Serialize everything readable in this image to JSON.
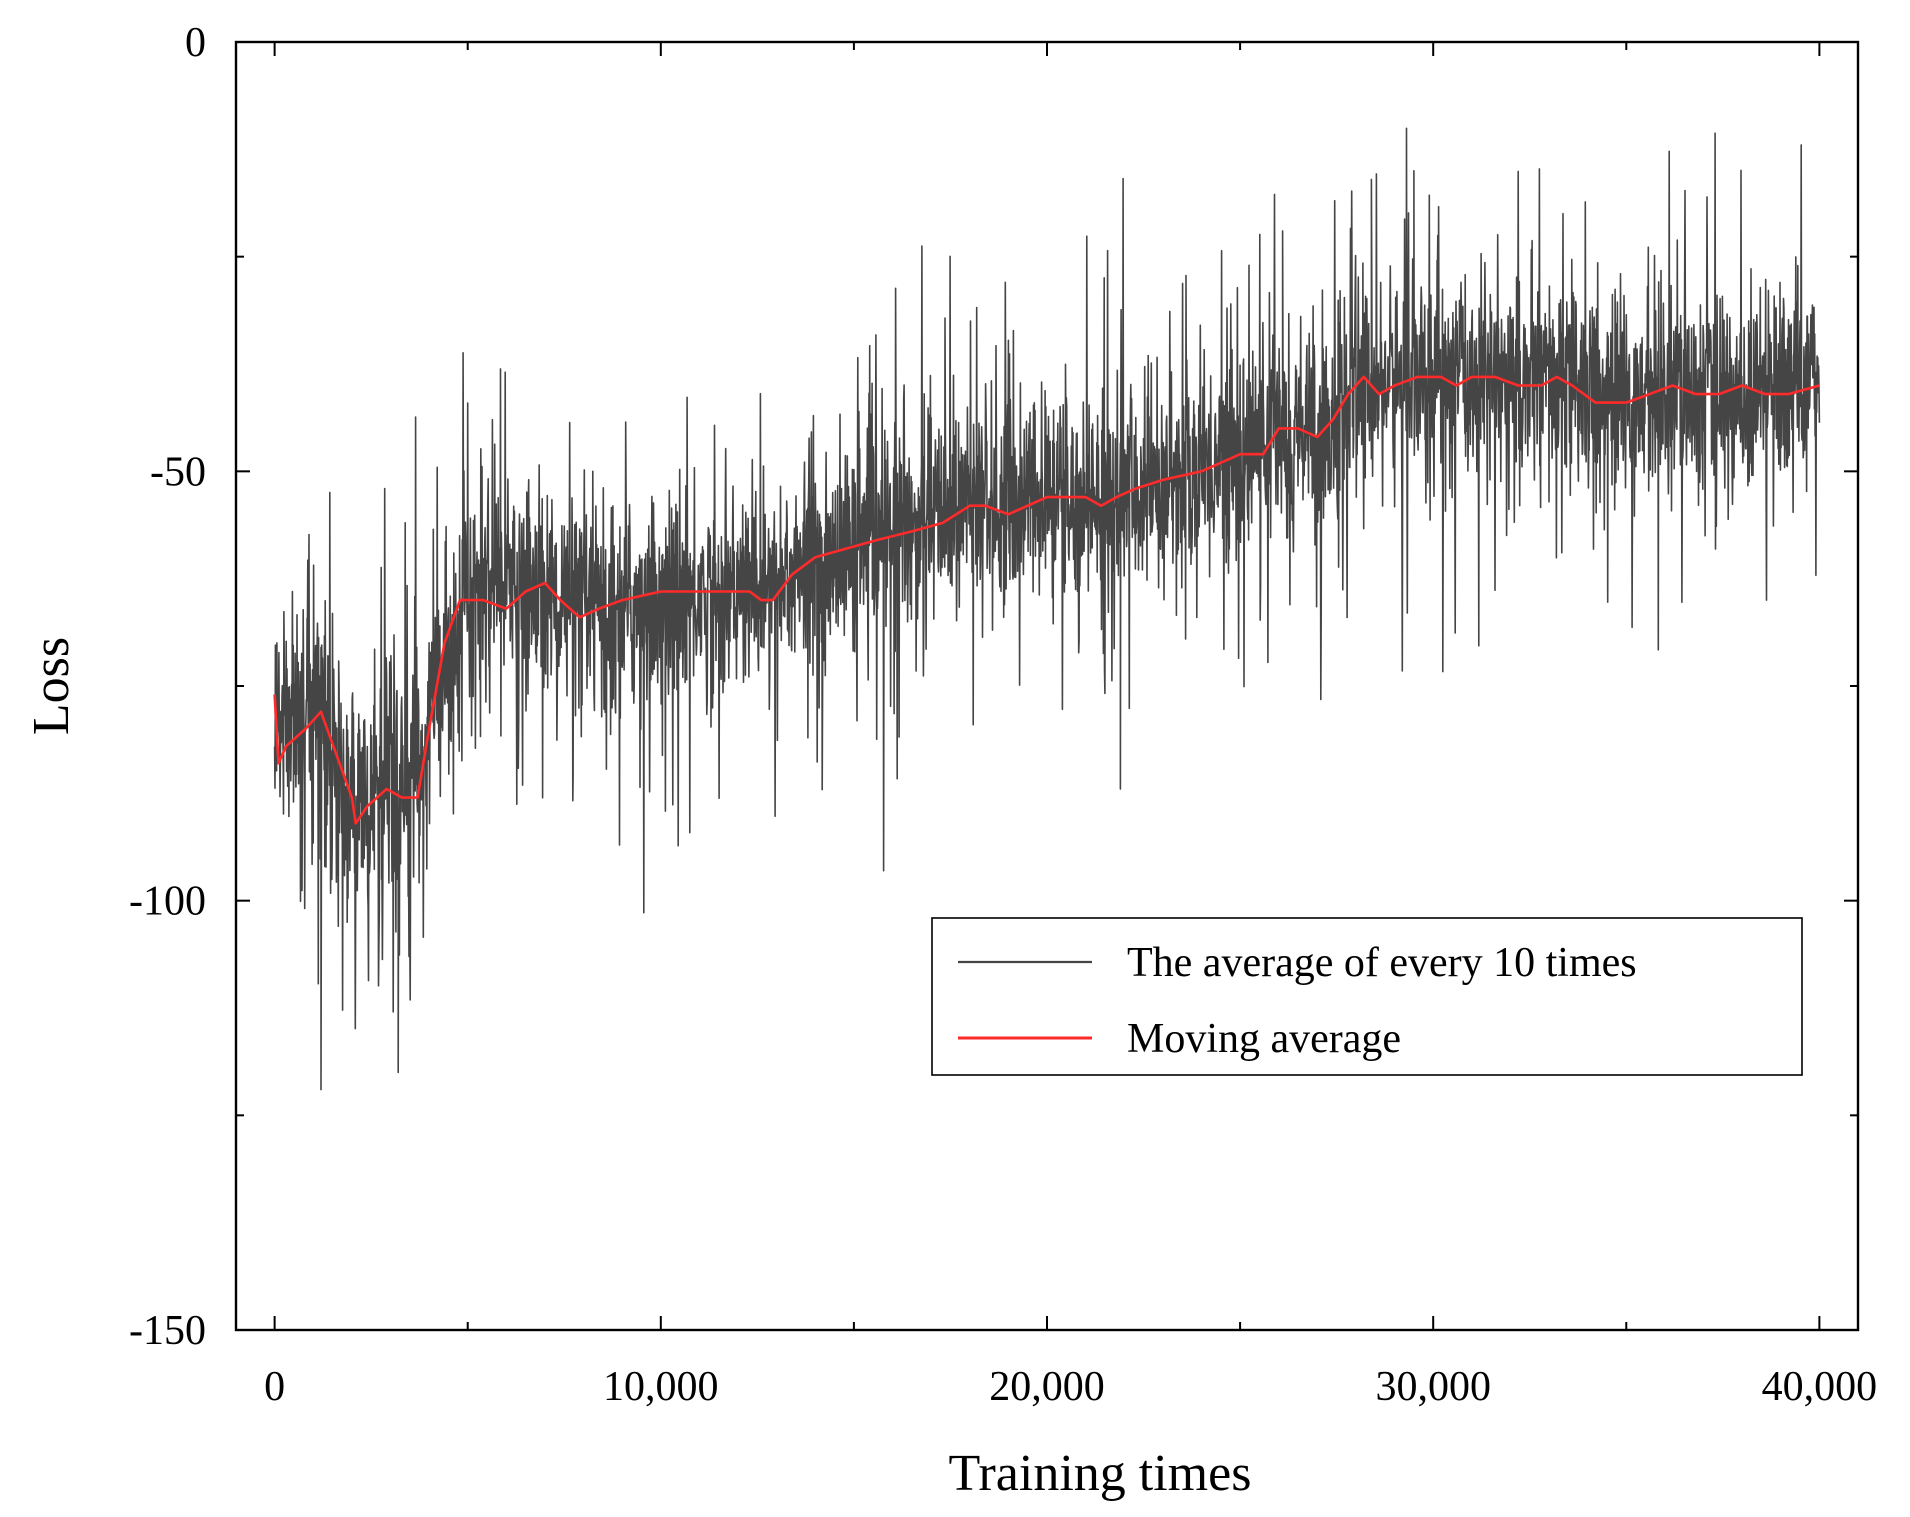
{
  "chart_data": {
    "type": "line",
    "title": "",
    "xlabel": "Training times",
    "ylabel": "Loss",
    "xlim": [
      -1000,
      41000
    ],
    "ylim": [
      -150,
      0
    ],
    "xticks": [
      0,
      10000,
      20000,
      30000,
      40000
    ],
    "xtick_labels": [
      "0",
      "10,000",
      "20,000",
      "30,000",
      "40,000"
    ],
    "yticks": [
      0,
      -50,
      -100,
      -150
    ],
    "ytick_labels": [
      "0",
      "-50",
      "-100",
      "-150"
    ],
    "legend_position": "lower-right",
    "series": [
      {
        "name": "The average of every 10 times",
        "color": "#454545",
        "style": "noisy",
        "noise_band": 12,
        "trend": {
          "x": [
            0,
            500,
            1200,
            2000,
            3000,
            3600,
            4200,
            5000,
            7000,
            8000,
            10000,
            12500,
            15000,
            18000,
            20000,
            22000,
            25000,
            26000,
            27000,
            28000,
            30000,
            32000,
            35000,
            40000
          ],
          "y": [
            -80,
            -79,
            -78,
            -90,
            -88,
            -87,
            -75,
            -65,
            -64,
            -67,
            -65,
            -64,
            -59,
            -54,
            -53,
            -53,
            -48,
            -45,
            -46,
            -40,
            -39,
            -39,
            -42,
            -40
          ]
        },
        "min_points": {
          "x": [
            1200,
            3200,
            21900
          ],
          "y": [
            -122,
            -120,
            -87
          ]
        },
        "max_points": {
          "x": [
            28400,
            29500,
            26100
          ],
          "y": [
            -16,
            -15,
            -22
          ]
        }
      },
      {
        "name": "Moving average",
        "color": "#ff2a2a",
        "style": "smooth",
        "x": [
          0,
          100,
          300,
          800,
          1200,
          1600,
          2000,
          2100,
          2400,
          2900,
          3300,
          3700,
          4000,
          4400,
          4800,
          5400,
          6000,
          6500,
          7000,
          7400,
          7900,
          8400,
          9000,
          10000,
          11000,
          11800,
          12300,
          12600,
          12900,
          13400,
          14000,
          14800,
          15600,
          16500,
          17300,
          18000,
          18400,
          19000,
          20000,
          21000,
          21400,
          21800,
          22300,
          23000,
          24000,
          25000,
          25600,
          26000,
          26500,
          27000,
          27400,
          27800,
          28200,
          28600,
          29000,
          29600,
          30200,
          30600,
          31000,
          31600,
          32200,
          32800,
          33200,
          33600,
          34200,
          35000,
          35600,
          36200,
          36800,
          37400,
          38000,
          38600,
          39200,
          40000
        ],
        "y": [
          -76,
          -84,
          -82,
          -80,
          -78,
          -83,
          -88,
          -91,
          -89,
          -87,
          -88,
          -88,
          -80,
          -70,
          -65,
          -65,
          -66,
          -64,
          -63,
          -65,
          -67,
          -66,
          -65,
          -64,
          -64,
          -64,
          -64,
          -65,
          -65,
          -62,
          -60,
          -59,
          -58,
          -57,
          -56,
          -54,
          -54,
          -55,
          -53,
          -53,
          -54,
          -53,
          -52,
          -51,
          -50,
          -48,
          -48,
          -45,
          -45,
          -46,
          -44,
          -41,
          -39,
          -41,
          -40,
          -39,
          -39,
          -40,
          -39,
          -39,
          -40,
          -40,
          -39,
          -40,
          -42,
          -42,
          -41,
          -40,
          -41,
          -41,
          -40,
          -41,
          -41,
          -40
        ]
      }
    ]
  }
}
